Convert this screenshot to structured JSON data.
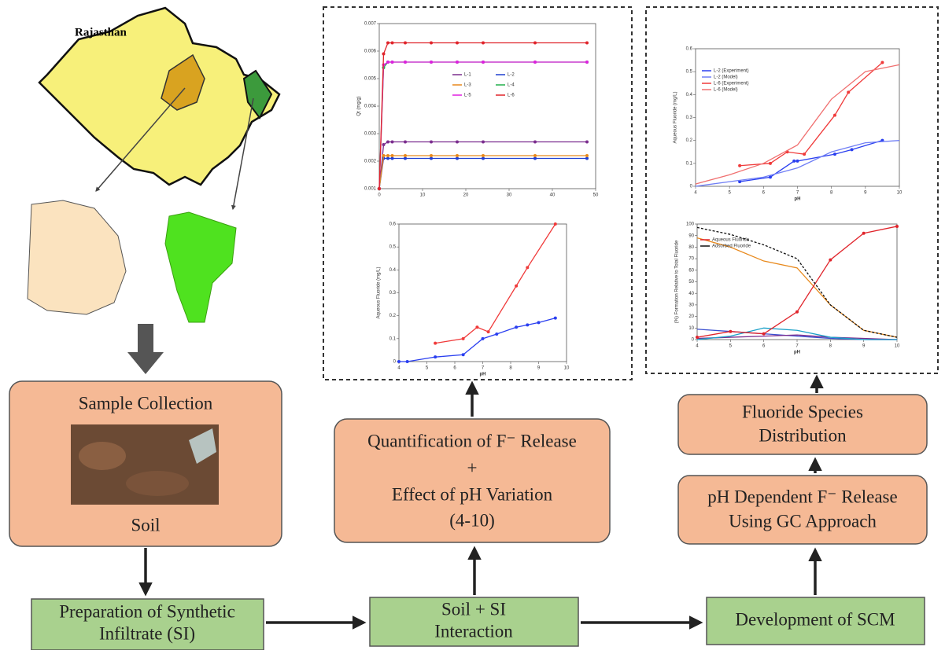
{
  "map": {
    "title": "Rajasthan"
  },
  "boxes": {
    "sample_collection": {
      "title": "Sample Collection",
      "caption": "Soil"
    },
    "preparation": {
      "lines": [
        "Preparation of Synthetic",
        "Infiltrate (SI)"
      ]
    },
    "interaction": {
      "lines": [
        "Soil + SI",
        "Interaction"
      ]
    },
    "scm": {
      "lines": [
        "Development of SCM"
      ]
    },
    "quantification": {
      "lines": [
        "Quantification of F⁻ Release",
        "+",
        "Effect of pH Variation",
        "(4-10)"
      ]
    },
    "species": {
      "lines": [
        "Fluoride Species",
        "Distribution"
      ]
    },
    "gc": {
      "lines": [
        "pH Dependent F⁻ Release",
        "Using GC Approach"
      ]
    }
  },
  "chart_data": [
    {
      "type": "line",
      "ylabel": "Qt (mg/g)",
      "xlim": [
        0,
        50
      ],
      "ylim": [
        0.001,
        0.007
      ],
      "xticks": [
        0,
        10,
        20,
        30,
        40,
        50
      ],
      "yticks": [
        0.001,
        0.002,
        0.003,
        0.004,
        0.005,
        0.006,
        0.007
      ],
      "markers": true,
      "series": [
        {
          "name": "L-1",
          "color": "#7b2d8e",
          "x": [
            0,
            1,
            2,
            3,
            6,
            12,
            18,
            24,
            36,
            48
          ],
          "values": [
            0.001,
            0.0026,
            0.0027,
            0.0027,
            0.0027,
            0.0027,
            0.0027,
            0.0027,
            0.0027,
            0.0027
          ]
        },
        {
          "name": "L-2",
          "color": "#1f3fd1",
          "x": [
            0,
            1,
            2,
            3,
            6,
            12,
            18,
            24,
            36,
            48
          ],
          "values": [
            0.001,
            0.0021,
            0.0021,
            0.0021,
            0.0021,
            0.0021,
            0.0021,
            0.0021,
            0.0021,
            0.0021
          ]
        },
        {
          "name": "L-3",
          "color": "#e8891c",
          "x": [
            0,
            1,
            2,
            3,
            6,
            12,
            18,
            24,
            36,
            48
          ],
          "values": [
            0.001,
            0.0022,
            0.0022,
            0.0022,
            0.0022,
            0.0022,
            0.0022,
            0.0022,
            0.0022,
            0.0022
          ]
        },
        {
          "name": "L-4",
          "color": "#22b14c",
          "x": [
            0,
            1,
            2,
            3,
            6,
            12,
            18,
            24,
            36,
            48
          ],
          "values": [
            0.001,
            0.0054,
            0.0056,
            0.0056,
            0.0056,
            0.0056,
            0.0056,
            0.0056,
            0.0056,
            0.0056
          ]
        },
        {
          "name": "L-5",
          "color": "#e020e0",
          "x": [
            0,
            1,
            2,
            3,
            6,
            12,
            18,
            24,
            36,
            48
          ],
          "values": [
            0.001,
            0.0055,
            0.0056,
            0.0056,
            0.0056,
            0.0056,
            0.0056,
            0.0056,
            0.0056,
            0.0056
          ]
        },
        {
          "name": "L-6",
          "color": "#e0242b",
          "x": [
            0,
            1,
            2,
            3,
            6,
            12,
            18,
            24,
            36,
            48
          ],
          "values": [
            0.001,
            0.0059,
            0.0063,
            0.0063,
            0.0063,
            0.0063,
            0.0063,
            0.0063,
            0.0063,
            0.0063
          ]
        }
      ]
    },
    {
      "type": "line",
      "xlabel": "pH",
      "ylabel": "Aqueous Fluoride (mg/L)",
      "xlim": [
        4,
        10
      ],
      "ylim": [
        0,
        0.6
      ],
      "xticks": [
        4,
        5,
        6,
        7,
        8,
        9,
        10
      ],
      "yticks": [
        0,
        0.1,
        0.2,
        0.3,
        0.4,
        0.5,
        0.6
      ],
      "markers": true,
      "series": [
        {
          "color": "#2a3ff0",
          "x": [
            4,
            4.3,
            5.3,
            6.3,
            7,
            7.5,
            8.2,
            8.6,
            9,
            9.6
          ],
          "values": [
            0,
            0,
            0.02,
            0.03,
            0.1,
            0.12,
            0.15,
            0.16,
            0.17,
            0.19
          ]
        },
        {
          "color": "#f03a3a",
          "x": [
            5.3,
            6.3,
            6.8,
            7.2,
            8.2,
            8.6,
            9.6
          ],
          "values": [
            0.08,
            0.1,
            0.15,
            0.13,
            0.33,
            0.41,
            0.6
          ]
        }
      ]
    },
    {
      "type": "line",
      "xlabel": "pH",
      "ylabel": "Aqueous Fluoride (mg/L)",
      "xlim": [
        4,
        10
      ],
      "ylim": [
        0,
        0.6
      ],
      "xticks": [
        4,
        5,
        6,
        7,
        8,
        9,
        10
      ],
      "yticks": [
        0,
        0.1,
        0.2,
        0.3,
        0.4,
        0.5,
        0.6
      ],
      "markers": false,
      "series": [
        {
          "name": "L-2 (Experiment)",
          "color": "#2a3ff0",
          "markers": true,
          "x": [
            5.3,
            6.2,
            6.9,
            7,
            8.1,
            8.6,
            9.5
          ],
          "values": [
            0.02,
            0.04,
            0.11,
            0.11,
            0.14,
            0.16,
            0.2
          ]
        },
        {
          "name": "L-2 (Model)",
          "color": "#6f7ef5",
          "x": [
            4,
            5,
            6,
            7,
            8,
            9,
            10
          ],
          "values": [
            0,
            0.02,
            0.04,
            0.08,
            0.15,
            0.19,
            0.2
          ]
        },
        {
          "name": "L-6 (Experiment)",
          "color": "#f03a3a",
          "markers": true,
          "x": [
            5.3,
            6.2,
            6.7,
            7.2,
            8.1,
            8.5,
            9.5
          ],
          "values": [
            0.09,
            0.1,
            0.15,
            0.14,
            0.31,
            0.41,
            0.54
          ]
        },
        {
          "name": "L-6 (Model)",
          "color": "#f07070",
          "x": [
            4,
            5,
            6,
            7,
            8,
            9,
            10
          ],
          "values": [
            0.01,
            0.05,
            0.1,
            0.18,
            0.38,
            0.5,
            0.53
          ]
        }
      ]
    },
    {
      "type": "line",
      "xlabel": "pH",
      "ylabel": "(%) Formation Relative to Total Fluoride",
      "xlim": [
        4,
        10
      ],
      "ylim": [
        0,
        100
      ],
      "xticks": [
        4,
        5,
        6,
        7,
        8,
        9,
        10
      ],
      "yticks": [
        0,
        10,
        20,
        30,
        40,
        50,
        60,
        70,
        80,
        90,
        100
      ],
      "markers": false,
      "series": [
        {
          "color": "#3a4fd0",
          "x": [
            4,
            5,
            6,
            7,
            8,
            9,
            10
          ],
          "values": [
            9,
            7,
            5,
            3,
            1,
            0,
            0
          ]
        },
        {
          "color": "#e8891c",
          "x": [
            4,
            5,
            6,
            7,
            8,
            9,
            10
          ],
          "values": [
            88,
            80,
            68,
            62,
            30,
            8,
            2
          ]
        },
        {
          "color": "#7b2d8e",
          "x": [
            4,
            5,
            6,
            7,
            8,
            9,
            10
          ],
          "values": [
            1,
            2,
            3,
            4,
            2,
            1,
            0
          ]
        },
        {
          "color": "#1aa0c8",
          "x": [
            4,
            5,
            6,
            7,
            8,
            9,
            10
          ],
          "values": [
            0,
            3,
            10,
            8,
            2,
            0,
            0
          ]
        },
        {
          "name": "Aqueous Fluoride",
          "color": "#e0242b",
          "markers": true,
          "x": [
            4,
            5,
            6,
            7,
            8,
            9,
            10
          ],
          "values": [
            2,
            7,
            5,
            24,
            69,
            92,
            98
          ]
        },
        {
          "name": "Adsorbed Fluoride",
          "color": "#111111",
          "dash": true,
          "x": [
            4,
            5,
            6,
            7,
            8,
            9,
            10
          ],
          "values": [
            97,
            91,
            82,
            70,
            30,
            8,
            2
          ]
        }
      ]
    }
  ]
}
